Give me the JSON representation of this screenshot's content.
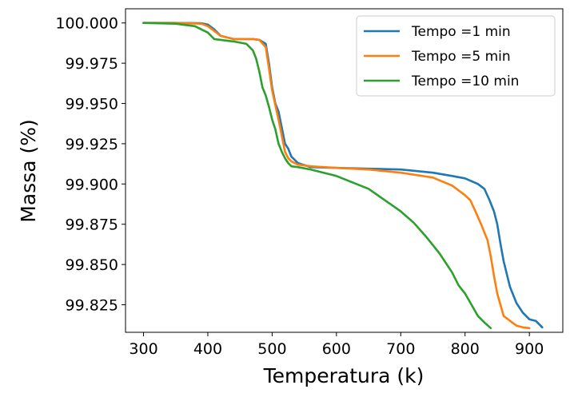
{
  "chart_data": {
    "type": "line",
    "title": "",
    "xlabel": "Temperatura (k)",
    "ylabel": "Massa (%)",
    "xlim": [
      272,
      952
    ],
    "ylim": [
      99.8079,
      100.0088
    ],
    "xticks": [
      300,
      400,
      500,
      600,
      700,
      800,
      900
    ],
    "yticks": [
      99.825,
      99.85,
      99.875,
      99.9,
      99.925,
      99.95,
      99.975,
      100.0
    ],
    "xtick_labels": [
      "300",
      "400",
      "500",
      "600",
      "700",
      "800",
      "900"
    ],
    "ytick_labels": [
      "99.825",
      "99.850",
      "99.875",
      "99.900",
      "99.925",
      "99.950",
      "99.975",
      "100.000"
    ],
    "grid": false,
    "legend_position": "top-right",
    "series": [
      {
        "name": "Tempo =1 min",
        "color": "#1f77b4",
        "x": [
          300,
          350,
          390,
          400,
          410,
          420,
          440,
          470,
          480,
          490,
          495,
          500,
          505,
          510,
          515,
          520,
          525,
          530,
          540,
          560,
          600,
          650,
          700,
          750,
          780,
          800,
          820,
          830,
          838,
          845,
          850,
          855,
          860,
          870,
          880,
          890,
          900,
          910,
          915,
          920
        ],
        "y": [
          100.0,
          100.0,
          99.9998,
          99.999,
          99.996,
          99.992,
          99.99,
          99.99,
          99.9895,
          99.987,
          99.975,
          99.96,
          99.95,
          99.945,
          99.935,
          99.925,
          99.922,
          99.917,
          99.913,
          99.9105,
          99.91,
          99.9095,
          99.909,
          99.907,
          99.905,
          99.9035,
          99.9,
          99.897,
          99.89,
          99.883,
          99.875,
          99.863,
          99.852,
          99.836,
          99.826,
          99.82,
          99.816,
          99.815,
          99.813,
          99.811
        ]
      },
      {
        "name": "Tempo =5 min",
        "color": "#ff7f0e",
        "x": [
          300,
          350,
          390,
          400,
          410,
          420,
          440,
          470,
          480,
          490,
          495,
          500,
          505,
          510,
          515,
          520,
          525,
          530,
          540,
          560,
          600,
          650,
          700,
          750,
          780,
          790,
          800,
          808,
          815,
          825,
          835,
          840,
          845,
          850,
          855,
          860,
          870,
          880,
          890,
          900
        ],
        "y": [
          100.0,
          100.0,
          99.9995,
          99.998,
          99.995,
          99.992,
          99.99,
          99.99,
          99.9895,
          99.985,
          99.972,
          99.958,
          99.949,
          99.94,
          99.93,
          99.92,
          99.916,
          99.914,
          99.912,
          99.911,
          99.91,
          99.909,
          99.907,
          99.904,
          99.899,
          99.896,
          99.893,
          99.89,
          99.884,
          99.875,
          99.865,
          99.855,
          99.843,
          99.832,
          99.825,
          99.818,
          99.815,
          99.812,
          99.811,
          99.8105
        ]
      },
      {
        "name": "Tempo =10 min",
        "color": "#2ca02c",
        "x": [
          300,
          350,
          380,
          390,
          400,
          405,
          410,
          420,
          440,
          460,
          470,
          475,
          480,
          485,
          490,
          495,
          500,
          505,
          510,
          515,
          520,
          525,
          530,
          540,
          560,
          600,
          650,
          700,
          720,
          740,
          760,
          780,
          790,
          800,
          810,
          820,
          830,
          840
        ],
        "y": [
          100.0,
          99.9995,
          99.998,
          99.996,
          99.994,
          99.992,
          99.99,
          99.9895,
          99.9885,
          99.987,
          99.983,
          99.978,
          99.97,
          99.96,
          99.955,
          99.948,
          99.94,
          99.934,
          99.925,
          99.92,
          99.916,
          99.913,
          99.911,
          99.9105,
          99.909,
          99.905,
          99.897,
          99.883,
          99.876,
          99.867,
          99.857,
          99.845,
          99.837,
          99.832,
          99.825,
          99.818,
          99.814,
          99.8105
        ]
      }
    ]
  }
}
